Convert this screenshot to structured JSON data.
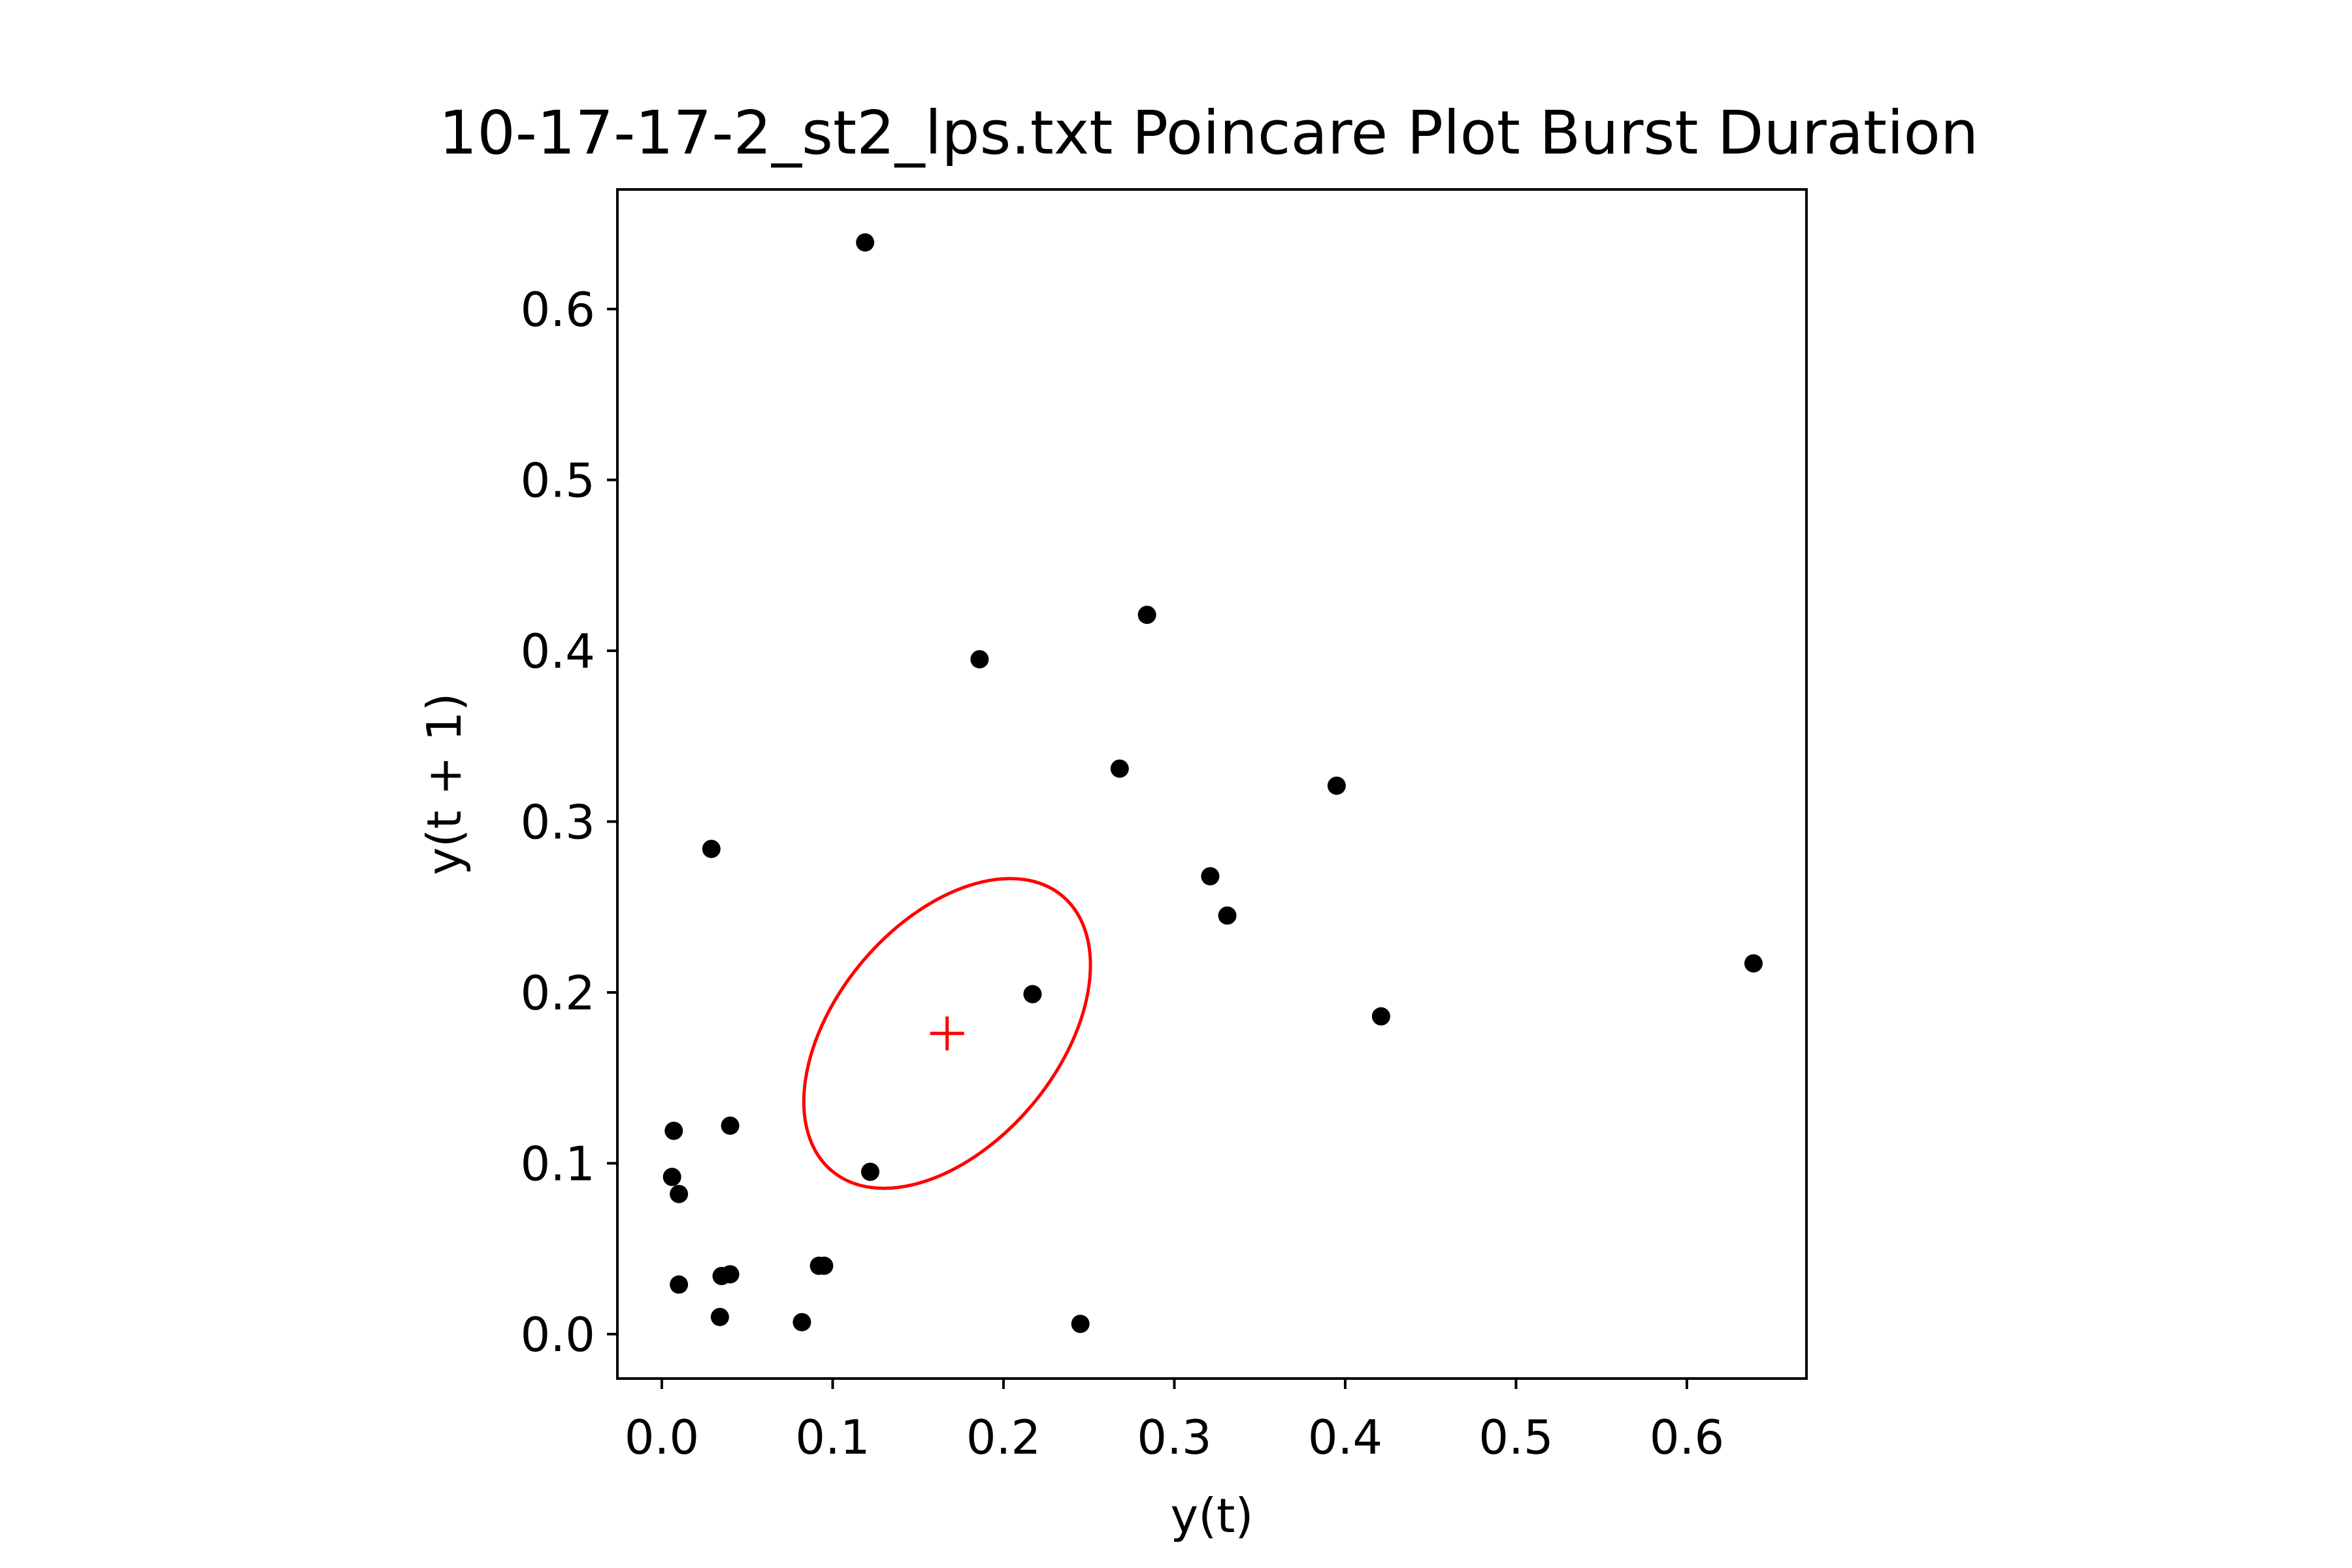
{
  "chart_data": {
    "type": "scatter",
    "title": "10-17-17-2_st2_lps.txt Poincare Plot Burst Duration",
    "xlabel": "y(t)",
    "ylabel": "y(t + 1)",
    "xlim": [
      -0.026,
      0.67
    ],
    "ylim": [
      -0.026,
      0.67
    ],
    "xticks": [
      "0.0",
      "0.1",
      "0.2",
      "0.3",
      "0.4",
      "0.5",
      "0.6"
    ],
    "yticks": [
      "0.0",
      "0.1",
      "0.2",
      "0.3",
      "0.4",
      "0.5",
      "0.6"
    ],
    "grid": false,
    "points": [
      {
        "x": 0.119,
        "y": 0.639
      },
      {
        "x": 0.284,
        "y": 0.421
      },
      {
        "x": 0.186,
        "y": 0.395
      },
      {
        "x": 0.268,
        "y": 0.331
      },
      {
        "x": 0.395,
        "y": 0.321
      },
      {
        "x": 0.029,
        "y": 0.284
      },
      {
        "x": 0.321,
        "y": 0.268
      },
      {
        "x": 0.331,
        "y": 0.245
      },
      {
        "x": 0.639,
        "y": 0.217
      },
      {
        "x": 0.217,
        "y": 0.199
      },
      {
        "x": 0.421,
        "y": 0.186
      },
      {
        "x": 0.04,
        "y": 0.122
      },
      {
        "x": 0.007,
        "y": 0.119
      },
      {
        "x": 0.122,
        "y": 0.095
      },
      {
        "x": 0.006,
        "y": 0.092
      },
      {
        "x": 0.01,
        "y": 0.082
      },
      {
        "x": 0.092,
        "y": 0.04
      },
      {
        "x": 0.095,
        "y": 0.04
      },
      {
        "x": 0.035,
        "y": 0.034
      },
      {
        "x": 0.04,
        "y": 0.035
      },
      {
        "x": 0.01,
        "y": 0.029
      },
      {
        "x": 0.034,
        "y": 0.01
      },
      {
        "x": 0.082,
        "y": 0.007
      },
      {
        "x": 0.245,
        "y": 0.006
      }
    ],
    "centroid": {
      "x": 0.167,
      "y": 0.176
    },
    "ellipse": {
      "cx": 0.167,
      "cy": 0.176,
      "rx": 0.105,
      "ry": 0.065,
      "angle_deg": 50
    },
    "point_color": "#000000",
    "overlay_color": "#ff0000"
  }
}
